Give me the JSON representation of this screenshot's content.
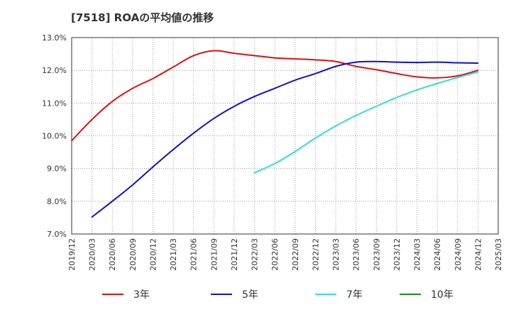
{
  "chart_data": {
    "type": "line",
    "title": "[7518]  ROAの平均値の推移",
    "xlabel": "",
    "ylabel": "",
    "ylim": [
      7.0,
      13.0
    ],
    "y_ticks": [
      "7.0%",
      "8.0%",
      "9.0%",
      "10.0%",
      "11.0%",
      "12.0%",
      "13.0%"
    ],
    "x_ticks": [
      "2019/12",
      "2020/03",
      "2020/06",
      "2020/09",
      "2020/12",
      "2021/03",
      "2021/06",
      "2021/09",
      "2021/12",
      "2022/03",
      "2022/06",
      "2022/09",
      "2022/12",
      "2023/03",
      "2023/06",
      "2023/09",
      "2023/12",
      "2024/03",
      "2024/06",
      "2024/09",
      "2024/12",
      "2025/03"
    ],
    "grid": true,
    "legend_position": "bottom",
    "series": [
      {
        "name": "3年",
        "color": "#dd1111",
        "x": [
          "2019/12",
          "2020/03",
          "2020/06",
          "2020/09",
          "2020/12",
          "2021/03",
          "2021/06",
          "2021/09",
          "2021/12",
          "2022/03",
          "2022/06",
          "2022/09",
          "2022/12",
          "2023/03",
          "2023/06",
          "2023/09",
          "2023/12",
          "2024/03",
          "2024/06",
          "2024/09",
          "2024/12"
        ],
        "values": [
          9.85,
          10.5,
          11.05,
          11.45,
          11.75,
          12.1,
          12.45,
          12.6,
          12.52,
          12.45,
          12.38,
          12.35,
          12.32,
          12.27,
          12.12,
          12.02,
          11.9,
          11.8,
          11.77,
          11.83,
          12.0
        ]
      },
      {
        "name": "5年",
        "color": "#1111cc",
        "x": [
          "2020/03",
          "2020/06",
          "2020/09",
          "2020/12",
          "2021/03",
          "2021/06",
          "2021/09",
          "2021/12",
          "2022/03",
          "2022/06",
          "2022/09",
          "2022/12",
          "2023/03",
          "2023/06",
          "2023/09",
          "2023/12",
          "2024/03",
          "2024/06",
          "2024/09",
          "2024/12"
        ],
        "values": [
          7.52,
          8.0,
          8.5,
          9.05,
          9.58,
          10.08,
          10.53,
          10.9,
          11.2,
          11.45,
          11.7,
          11.9,
          12.12,
          12.25,
          12.27,
          12.25,
          12.24,
          12.25,
          12.23,
          12.22
        ]
      },
      {
        "name": "7年",
        "color": "#33dddd",
        "x": [
          "2022/03",
          "2022/06",
          "2022/09",
          "2022/12",
          "2023/03",
          "2023/06",
          "2023/09",
          "2023/12",
          "2024/03",
          "2024/06",
          "2024/09",
          "2024/12"
        ],
        "values": [
          8.87,
          9.15,
          9.52,
          9.93,
          10.3,
          10.62,
          10.9,
          11.17,
          11.4,
          11.6,
          11.78,
          11.95
        ]
      },
      {
        "name": "10年",
        "color": "#228822",
        "x": [],
        "values": []
      }
    ]
  }
}
